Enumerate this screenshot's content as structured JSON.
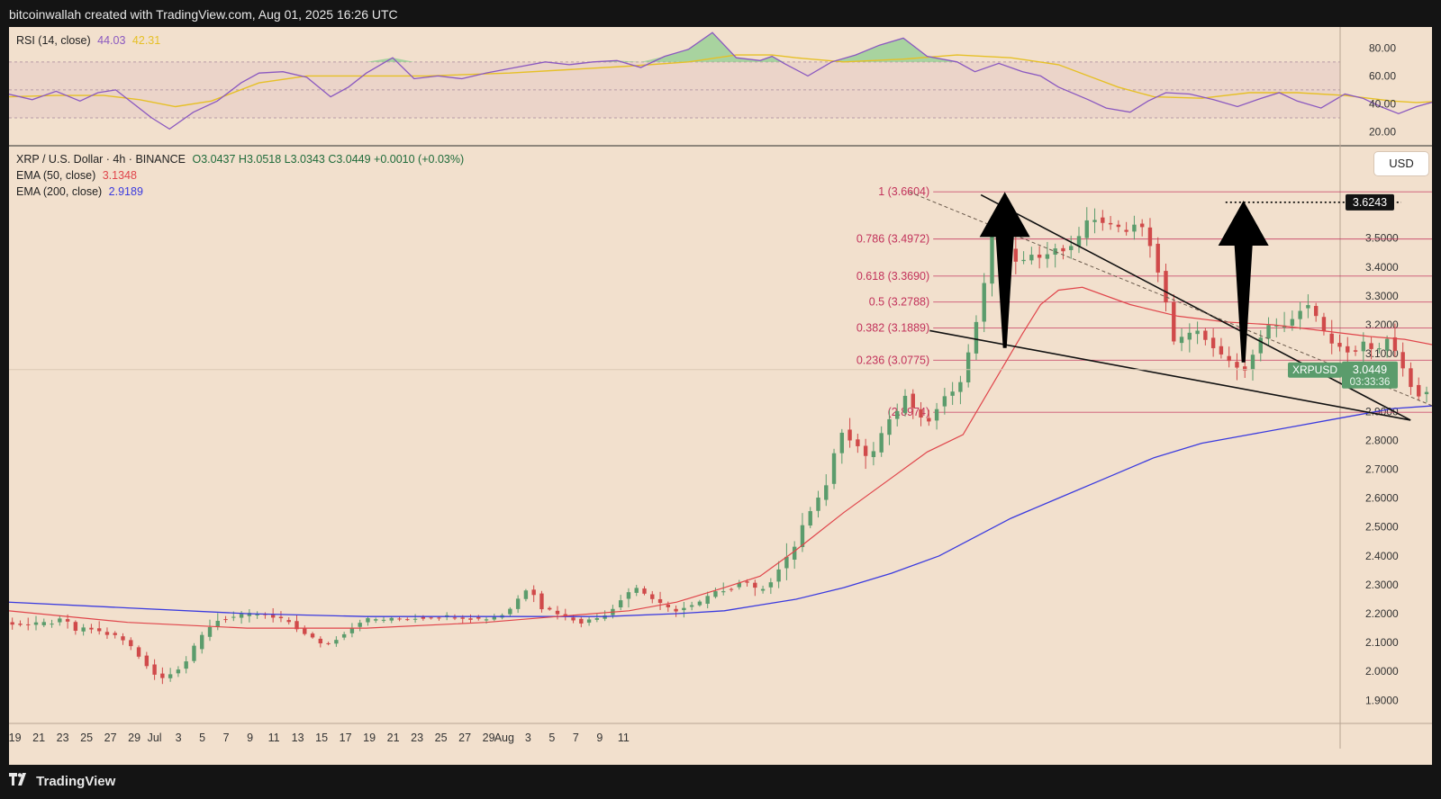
{
  "header": {
    "attribution": "bitcoinwallah created with TradingView.com, Aug 01, 2025 16:26 UTC"
  },
  "footer": {
    "brand": "TradingView",
    "logo_icon": "tradingview-logo-icon"
  },
  "rsi_legend": {
    "label": "RSI (14, close)",
    "value": "44.03",
    "ma_value": "42.31"
  },
  "price_legend": {
    "symbol": "XRP / U.S. Dollar · 4h · BINANCE",
    "ohlc": "O3.0437 H3.0518 L3.0343 C3.0449 +0.0010 (+0.03%)",
    "ema50_label": "EMA (50, close)",
    "ema50_value": "3.1348",
    "ema200_label": "EMA (200, close)",
    "ema200_value": "2.9189"
  },
  "currency_button": "USD",
  "colors": {
    "background": "#f2e0cd",
    "up": "#5b9c6c",
    "down": "#d04a4a",
    "ema50": "#e0454b",
    "ema200": "#3a3adf",
    "rsi": "#8a58c0",
    "rsi_ma": "#e6c026",
    "fib": "#c2325b",
    "trendline": "#111111"
  },
  "chart_data": [
    {
      "type": "line",
      "title": "RSI (14, close)",
      "ylim": [
        10,
        95
      ],
      "yticks": [
        "80.00",
        "60.00",
        "40.00",
        "20.00"
      ],
      "ytick_values": [
        80,
        60,
        40,
        20
      ],
      "bands": [
        70,
        50,
        30
      ],
      "series": [
        {
          "name": "RSI",
          "x": [
            0,
            2,
            4,
            6,
            7.5,
            9,
            10.5,
            12,
            13.5,
            15.5,
            17.5,
            19.5,
            21,
            23,
            25,
            27,
            28.5,
            30,
            32.2,
            34,
            36,
            38,
            40,
            42.5,
            45,
            47,
            49,
            51,
            53,
            55,
            57,
            59,
            61,
            63,
            64,
            65,
            67,
            69,
            71,
            73,
            75,
            77,
            79.5,
            81,
            83,
            85,
            86.5,
            88,
            90.5,
            92,
            94,
            95.5,
            97,
            99,
            101,
            103,
            105,
            106.5,
            108,
            110,
            112,
            113.5,
            115,
            116.5,
            118,
            120.5
          ],
          "values": [
            47,
            43,
            49,
            42,
            48,
            50,
            40,
            30,
            22,
            34,
            42,
            55,
            62,
            63,
            59,
            45,
            52,
            62,
            73,
            58,
            60,
            58,
            62,
            66,
            70,
            68,
            70,
            71,
            66,
            74,
            79,
            91,
            73,
            71,
            74,
            69,
            60,
            70,
            75,
            82,
            87,
            74,
            70,
            63,
            69,
            63,
            60,
            52,
            43,
            37,
            34,
            42,
            48,
            47,
            43,
            38,
            44,
            48,
            42,
            37,
            47,
            44,
            38,
            33,
            38,
            44
          ]
        },
        {
          "name": "RSI MA",
          "x": [
            0,
            4,
            8,
            11,
            14,
            17,
            21,
            25,
            30,
            35,
            42,
            48,
            52,
            57,
            61,
            64,
            66,
            70,
            75,
            79.5,
            84,
            88,
            90.5,
            93,
            96,
            100,
            104,
            108,
            112,
            116,
            118,
            120.5
          ],
          "values": [
            45,
            46,
            46,
            43,
            38,
            42,
            55,
            60,
            60,
            60,
            62,
            65,
            67,
            70,
            75,
            75,
            73,
            70,
            72,
            75,
            73,
            68,
            60,
            52,
            45,
            44,
            48,
            48,
            46,
            42,
            41,
            42
          ]
        }
      ]
    },
    {
      "type": "candlestick",
      "title": "XRP / U.S. Dollar · 4h · BINANCE",
      "ylim": [
        1.82,
        3.82
      ],
      "yticks": [
        "3.5000",
        "3.4000",
        "3.3000",
        "3.2000",
        "3.1000",
        "2.9000",
        "2.8000",
        "2.7000",
        "2.6000",
        "2.5000",
        "2.4000",
        "2.3000",
        "2.2000",
        "2.1000",
        "2.0000",
        "1.9000"
      ],
      "ytick_values": [
        3.5,
        3.4,
        3.3,
        3.2,
        3.1,
        2.9,
        2.8,
        2.7,
        2.6,
        2.5,
        2.4,
        2.3,
        2.2,
        2.1,
        2.0,
        1.9
      ],
      "xticks": [
        "19",
        "21",
        "23",
        "25",
        "27",
        "29",
        "Jul",
        "3",
        "5",
        "7",
        "9",
        "11",
        "13",
        "15",
        "17",
        "19",
        "21",
        "23",
        "25",
        "27",
        "29",
        "Aug",
        "3",
        "5",
        "7",
        "9",
        "11"
      ],
      "xtick_dates": [
        "2025-06-19",
        "2025-06-21",
        "2025-06-23",
        "2025-06-25",
        "2025-06-27",
        "2025-06-29",
        "2025-07-01",
        "2025-07-03",
        "2025-07-05",
        "2025-07-07",
        "2025-07-09",
        "2025-07-11",
        "2025-07-13",
        "2025-07-15",
        "2025-07-17",
        "2025-07-19",
        "2025-07-21",
        "2025-07-23",
        "2025-07-25",
        "2025-07-27",
        "2025-07-29",
        "2025-08-01",
        "2025-08-03",
        "2025-08-05",
        "2025-08-07",
        "2025-08-09",
        "2025-08-11"
      ],
      "price_anchors": {
        "x": [
          0,
          2,
          4,
          5,
          6,
          7,
          8.5,
          9.5,
          10.5,
          11.3,
          12,
          13,
          14,
          15,
          16,
          17,
          18,
          19.5,
          21,
          22,
          24,
          25,
          26,
          27,
          28,
          30,
          33,
          36,
          38,
          40,
          42,
          44,
          45,
          46,
          47,
          48.5,
          50,
          51,
          52,
          53,
          54,
          55,
          56,
          57,
          58,
          59,
          60,
          61,
          62,
          63,
          64,
          65,
          65.7,
          66.3,
          67,
          68,
          69,
          70,
          71.5,
          72.5,
          73,
          73.5,
          74,
          75,
          75.5,
          76,
          76.5,
          77.3,
          78.5,
          80,
          81,
          82,
          83,
          84,
          85,
          86,
          87,
          88,
          89,
          90,
          91,
          92,
          93,
          94,
          95,
          96,
          97,
          98,
          100,
          102,
          104,
          105,
          106,
          107,
          108,
          109,
          110,
          111,
          112,
          113,
          114,
          115,
          116,
          117,
          118,
          118.7,
          119.5,
          120.5
        ],
        "values": [
          2.17,
          2.16,
          2.17,
          2.18,
          2.14,
          2.15,
          2.13,
          2.12,
          2.09,
          2.05,
          2.02,
          1.97,
          2.0,
          2.02,
          2.09,
          2.15,
          2.18,
          2.19,
          2.2,
          2.19,
          2.17,
          2.13,
          2.11,
          2.09,
          2.12,
          2.18,
          2.18,
          2.19,
          2.19,
          2.18,
          2.2,
          2.3,
          2.22,
          2.21,
          2.19,
          2.17,
          2.19,
          2.22,
          2.27,
          2.29,
          2.26,
          2.23,
          2.21,
          2.22,
          2.23,
          2.26,
          2.28,
          2.29,
          2.32,
          2.28,
          2.3,
          2.36,
          2.4,
          2.44,
          2.52,
          2.58,
          2.66,
          2.84,
          2.78,
          2.73,
          2.78,
          2.82,
          2.87,
          2.9,
          2.96,
          2.92,
          2.88,
          2.86,
          2.94,
          2.99,
          3.13,
          3.32,
          3.58,
          3.47,
          3.4,
          3.45,
          3.42,
          3.47,
          3.45,
          3.5,
          3.58,
          3.55,
          3.54,
          3.52,
          3.56,
          3.48,
          3.34,
          3.14,
          3.18,
          3.09,
          3.04,
          3.14,
          3.2,
          3.19,
          3.22,
          3.28,
          3.22,
          3.14,
          3.12,
          3.1,
          3.14,
          3.1,
          3.16,
          3.06,
          2.98,
          2.95,
          2.97,
          3.045
        ]
      },
      "ohlc_last": {
        "open": 3.0437,
        "high": 3.0518,
        "low": 3.0343,
        "close": 3.0449
      },
      "ema50": {
        "x": [
          0,
          10,
          20,
          30,
          40,
          46,
          52,
          56,
          60,
          63,
          66,
          70,
          74,
          77,
          80,
          83,
          85,
          86.5,
          88,
          90,
          94,
          98,
          102,
          106,
          110,
          114,
          117,
          119.5
        ],
        "values": [
          2.21,
          2.17,
          2.15,
          2.15,
          2.17,
          2.19,
          2.21,
          2.24,
          2.29,
          2.33,
          2.42,
          2.55,
          2.67,
          2.76,
          2.82,
          3.03,
          3.17,
          3.27,
          3.32,
          3.33,
          3.27,
          3.23,
          3.21,
          3.2,
          3.18,
          3.16,
          3.15,
          3.13
        ]
      },
      "ema200": {
        "x": [
          0,
          10,
          20,
          30,
          40,
          50,
          56,
          60,
          63,
          66,
          70,
          74,
          78,
          84,
          88,
          92,
          96,
          100,
          104,
          108,
          112,
          116,
          119.5
        ],
        "values": [
          2.24,
          2.22,
          2.2,
          2.19,
          2.19,
          2.19,
          2.2,
          2.21,
          2.23,
          2.25,
          2.29,
          2.34,
          2.4,
          2.53,
          2.6,
          2.67,
          2.74,
          2.79,
          2.82,
          2.85,
          2.88,
          2.91,
          2.92
        ]
      },
      "fibonacci": [
        {
          "label": "1 (3.6604)",
          "value": 3.6604
        },
        {
          "label": "0.786 (3.4972)",
          "value": 3.4972
        },
        {
          "label": "0.618 (3.3690)",
          "value": 3.369
        },
        {
          "label": "0.5 (3.2788)",
          "value": 3.2788
        },
        {
          "label": "0.382 (3.1889)",
          "value": 3.1889
        },
        {
          "label": "0.236 (3.0775)",
          "value": 3.0775
        },
        {
          "label": "(2.8974)",
          "value": 2.8974
        }
      ],
      "target_level": {
        "label": "3.6243",
        "value": 3.6243
      },
      "current_price": {
        "symbol": "XRPUSD",
        "value": "3.0449",
        "countdown": "03:33:36",
        "price": 3.0449
      },
      "trendlines": [
        {
          "name": "upper-trendline",
          "from": [
            81.5,
            3.65
          ],
          "to": [
            117.5,
            2.87
          ]
        },
        {
          "name": "lower-trendline",
          "from": [
            77.2,
            3.18
          ],
          "to": [
            117.5,
            2.87
          ]
        },
        {
          "name": "dotted-trendline",
          "from": [
            75.5,
            3.66
          ],
          "to": [
            120.5,
            2.9
          ]
        }
      ],
      "arrows": [
        {
          "name": "left-arrow",
          "base": [
            83.5,
            3.12
          ],
          "tip": [
            83.5,
            3.66
          ]
        },
        {
          "name": "right-arrow",
          "base": [
            103.5,
            3.07
          ],
          "tip": [
            103.5,
            3.63
          ]
        }
      ]
    }
  ]
}
